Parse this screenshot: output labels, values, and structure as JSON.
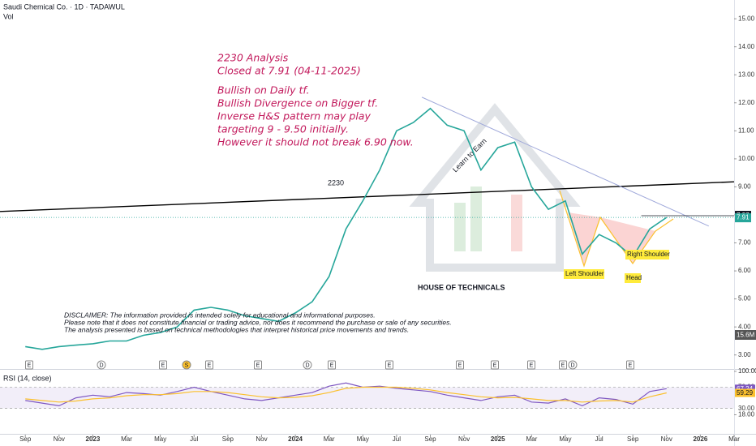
{
  "header": {
    "title": "Saudi Chemical Co. · 1D · TADAWUL",
    "volume_label": "Vol",
    "volume_value": "15.6M"
  },
  "analysis": [
    "2230 Analysis",
    "Closed at 7.91 (04-11-2025)",
    "Bullish on Daily tf.",
    "Bullish Divergence on Bigger tf.",
    "Inverse H&S pattern may play",
    "targeting 9 - 9.50 initially.",
    "However it should not break 6.90 now."
  ],
  "pattern_labels": [
    "Left Shoulder",
    "Head",
    "Right Shoulder"
  ],
  "disclaimer": [
    "DISCLAIMER: The information provided is intended solely for educational and informational purposes.",
    "Please note that it does not constitute financial or trading advice, nor does it recommend the purchase or sale of any securities.",
    "The analysis presented is based on technical methodologies that interpret historical price movements and trends."
  ],
  "watermark": {
    "symbol": "2230",
    "brand": "HOUSE OF TECHNICALS",
    "tagline": "Learn to Earn"
  },
  "events": [
    "E",
    "D",
    "E",
    "S",
    "E",
    "E",
    "D",
    "E",
    "E",
    "E",
    "E",
    "E",
    "E",
    "D",
    "E"
  ],
  "chart_data": [
    {
      "type": "line",
      "color": "#26a69a",
      "x": [
        0,
        1,
        2,
        3,
        4,
        5,
        6,
        7,
        8,
        9,
        10,
        11,
        12,
        13,
        14,
        15,
        16,
        17,
        18,
        19,
        20,
        21,
        22,
        23,
        24,
        25,
        26,
        27,
        28,
        29,
        30,
        31,
        32,
        33,
        34,
        35,
        36,
        37,
        38
      ],
      "values": [
        3.3,
        3.2,
        3.3,
        3.35,
        3.4,
        3.5,
        3.5,
        3.7,
        3.8,
        4.0,
        4.6,
        4.7,
        4.6,
        4.4,
        4.3,
        4.2,
        4.5,
        4.9,
        5.8,
        7.5,
        8.5,
        9.6,
        11.0,
        11.3,
        11.8,
        11.2,
        11.0,
        9.6,
        10.4,
        10.6,
        9.0,
        8.2,
        8.5,
        6.6,
        7.3,
        7.0,
        6.5,
        7.5,
        7.91
      ],
      "xlim": [
        -1.5,
        42
      ],
      "xticks": [
        {
          "value": 0,
          "label": "Sep"
        },
        {
          "value": 2,
          "label": "Nov"
        },
        {
          "value": 4,
          "label": "2023"
        },
        {
          "value": 6,
          "label": "Mar"
        },
        {
          "value": 8,
          "label": "May"
        },
        {
          "value": 10,
          "label": "Jul"
        },
        {
          "value": 12,
          "label": "Sep"
        },
        {
          "value": 14,
          "label": "Nov"
        },
        {
          "value": 16,
          "label": "2024"
        },
        {
          "value": 18,
          "label": "Mar"
        },
        {
          "value": 20,
          "label": "May"
        },
        {
          "value": 22,
          "label": "Jul"
        },
        {
          "value": 24,
          "label": "Sep"
        },
        {
          "value": 26,
          "label": "Nov"
        },
        {
          "value": 28,
          "label": "2025"
        },
        {
          "value": 30,
          "label": "Mar"
        },
        {
          "value": 32,
          "label": "May"
        },
        {
          "value": 34,
          "label": "Jul"
        },
        {
          "value": 36,
          "label": "Sep"
        },
        {
          "value": 38,
          "label": "Nov"
        },
        {
          "value": 40,
          "label": "2026"
        },
        {
          "value": 42,
          "label": "Mar"
        }
      ],
      "ylim": [
        2.5,
        15.67
      ],
      "yticks": [
        {
          "value": 3,
          "label": "3.00"
        },
        {
          "value": 4,
          "label": "4.00"
        },
        {
          "value": 5,
          "label": "5.00"
        },
        {
          "value": 6,
          "label": "6.00"
        },
        {
          "value": 7,
          "label": "7.00"
        },
        {
          "value": 8,
          "label": "8.00"
        },
        {
          "value": 9,
          "label": "9.00"
        },
        {
          "value": 10,
          "label": "10.00"
        },
        {
          "value": 11,
          "label": "11.00"
        },
        {
          "value": 12,
          "label": "12.00"
        },
        {
          "value": 13,
          "label": "13.00"
        },
        {
          "value": 14,
          "label": "14.00"
        },
        {
          "value": 15,
          "label": "15.00"
        }
      ],
      "price_line": 7.97,
      "trendlines": [
        {
          "x": [
            -1.5,
            42
          ],
          "y": [
            8.12,
            9.18
          ],
          "color": "#000000"
        },
        {
          "x": [
            23.5,
            40.5
          ],
          "y": [
            12.2,
            7.6
          ],
          "color": "#9fa8da"
        }
      ]
    },
    {
      "type": "line",
      "title": "RSI (14, close)",
      "x": [
        0,
        1,
        2,
        3,
        4,
        5,
        6,
        7,
        8,
        9,
        10,
        11,
        12,
        13,
        14,
        15,
        16,
        17,
        18,
        19,
        20,
        21,
        22,
        23,
        24,
        25,
        26,
        27,
        28,
        29,
        30,
        31,
        32,
        33,
        34,
        35,
        36,
        37,
        38
      ],
      "series": [
        {
          "color": "#7e57c2",
          "values": [
            45,
            40,
            35,
            50,
            55,
            52,
            60,
            58,
            55,
            62,
            70,
            62,
            55,
            48,
            45,
            50,
            55,
            60,
            72,
            78,
            70,
            72,
            68,
            65,
            62,
            55,
            50,
            45,
            52,
            55,
            42,
            40,
            48,
            35,
            50,
            47,
            38,
            62,
            67.24
          ]
        },
        {
          "color": "#fbc02d",
          "values": [
            48,
            45,
            42,
            44,
            48,
            50,
            54,
            56,
            56,
            58,
            62,
            62,
            60,
            56,
            52,
            50,
            51,
            54,
            60,
            68,
            70,
            70,
            70,
            68,
            65,
            60,
            56,
            52,
            50,
            51,
            48,
            45,
            45,
            42,
            44,
            45,
            42,
            52,
            59.29
          ]
        }
      ],
      "ylim": [
        -18,
        103
      ],
      "yticks": [
        {
          "value": 100,
          "label": "100.00"
        },
        {
          "value": 70,
          "label": "70.00"
        },
        {
          "value": 30,
          "label": "30.00"
        },
        {
          "value": 18,
          "label": "18.00"
        }
      ]
    }
  ]
}
